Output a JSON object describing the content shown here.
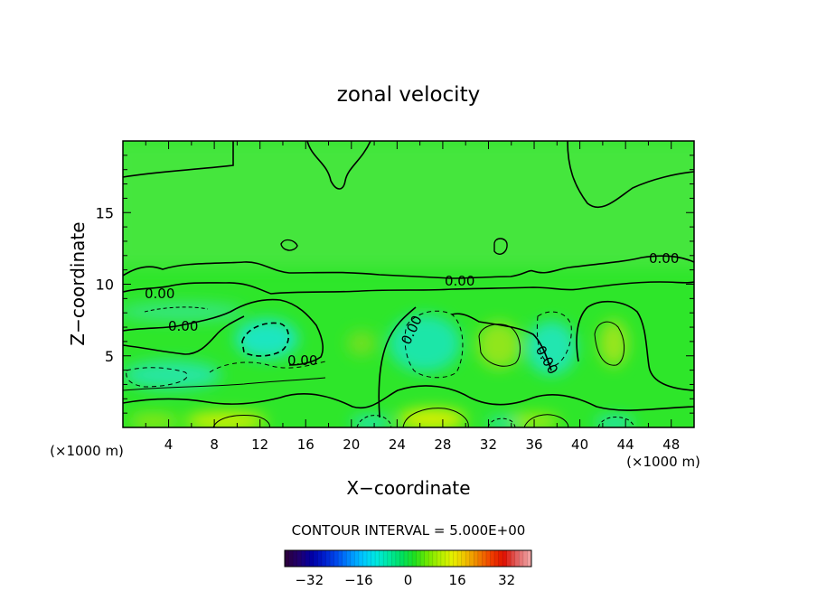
{
  "chart_data": {
    "type": "heatmap",
    "title": "zonal velocity",
    "xlabel": "X−coordinate",
    "ylabel": "Z−coordinate",
    "x_unit": "(×1000 m)",
    "x_unit_right": "(×1000 m)",
    "xlim": [
      0,
      50
    ],
    "ylim": [
      0,
      20
    ],
    "x_ticks": [
      "4",
      "8",
      "12",
      "16",
      "20",
      "24",
      "28",
      "32",
      "36",
      "40",
      "44",
      "48"
    ],
    "y_ticks": [
      "5",
      "10",
      "15"
    ],
    "contour_labels": [
      "0.00",
      "0.00",
      "0.00",
      "0.00",
      "0.00",
      "0.00",
      "0.00"
    ],
    "contour_interval_text": "CONTOUR INTERVAL = 5.000E+00",
    "colorbar": {
      "range": [
        -40,
        40
      ],
      "tick_labels": [
        "−32",
        "−16",
        "0",
        "16",
        "32"
      ],
      "colors": [
        "#2b0040",
        "#200070",
        "#0000a8",
        "#0020d0",
        "#0050f0",
        "#0090ff",
        "#00c8ff",
        "#00e8e0",
        "#00e8a0",
        "#00e060",
        "#20e020",
        "#70e800",
        "#b0f000",
        "#e8f000",
        "#f0c000",
        "#f08000",
        "#f04000",
        "#e01000",
        "#e06060",
        "#f0a0a0"
      ]
    }
  }
}
